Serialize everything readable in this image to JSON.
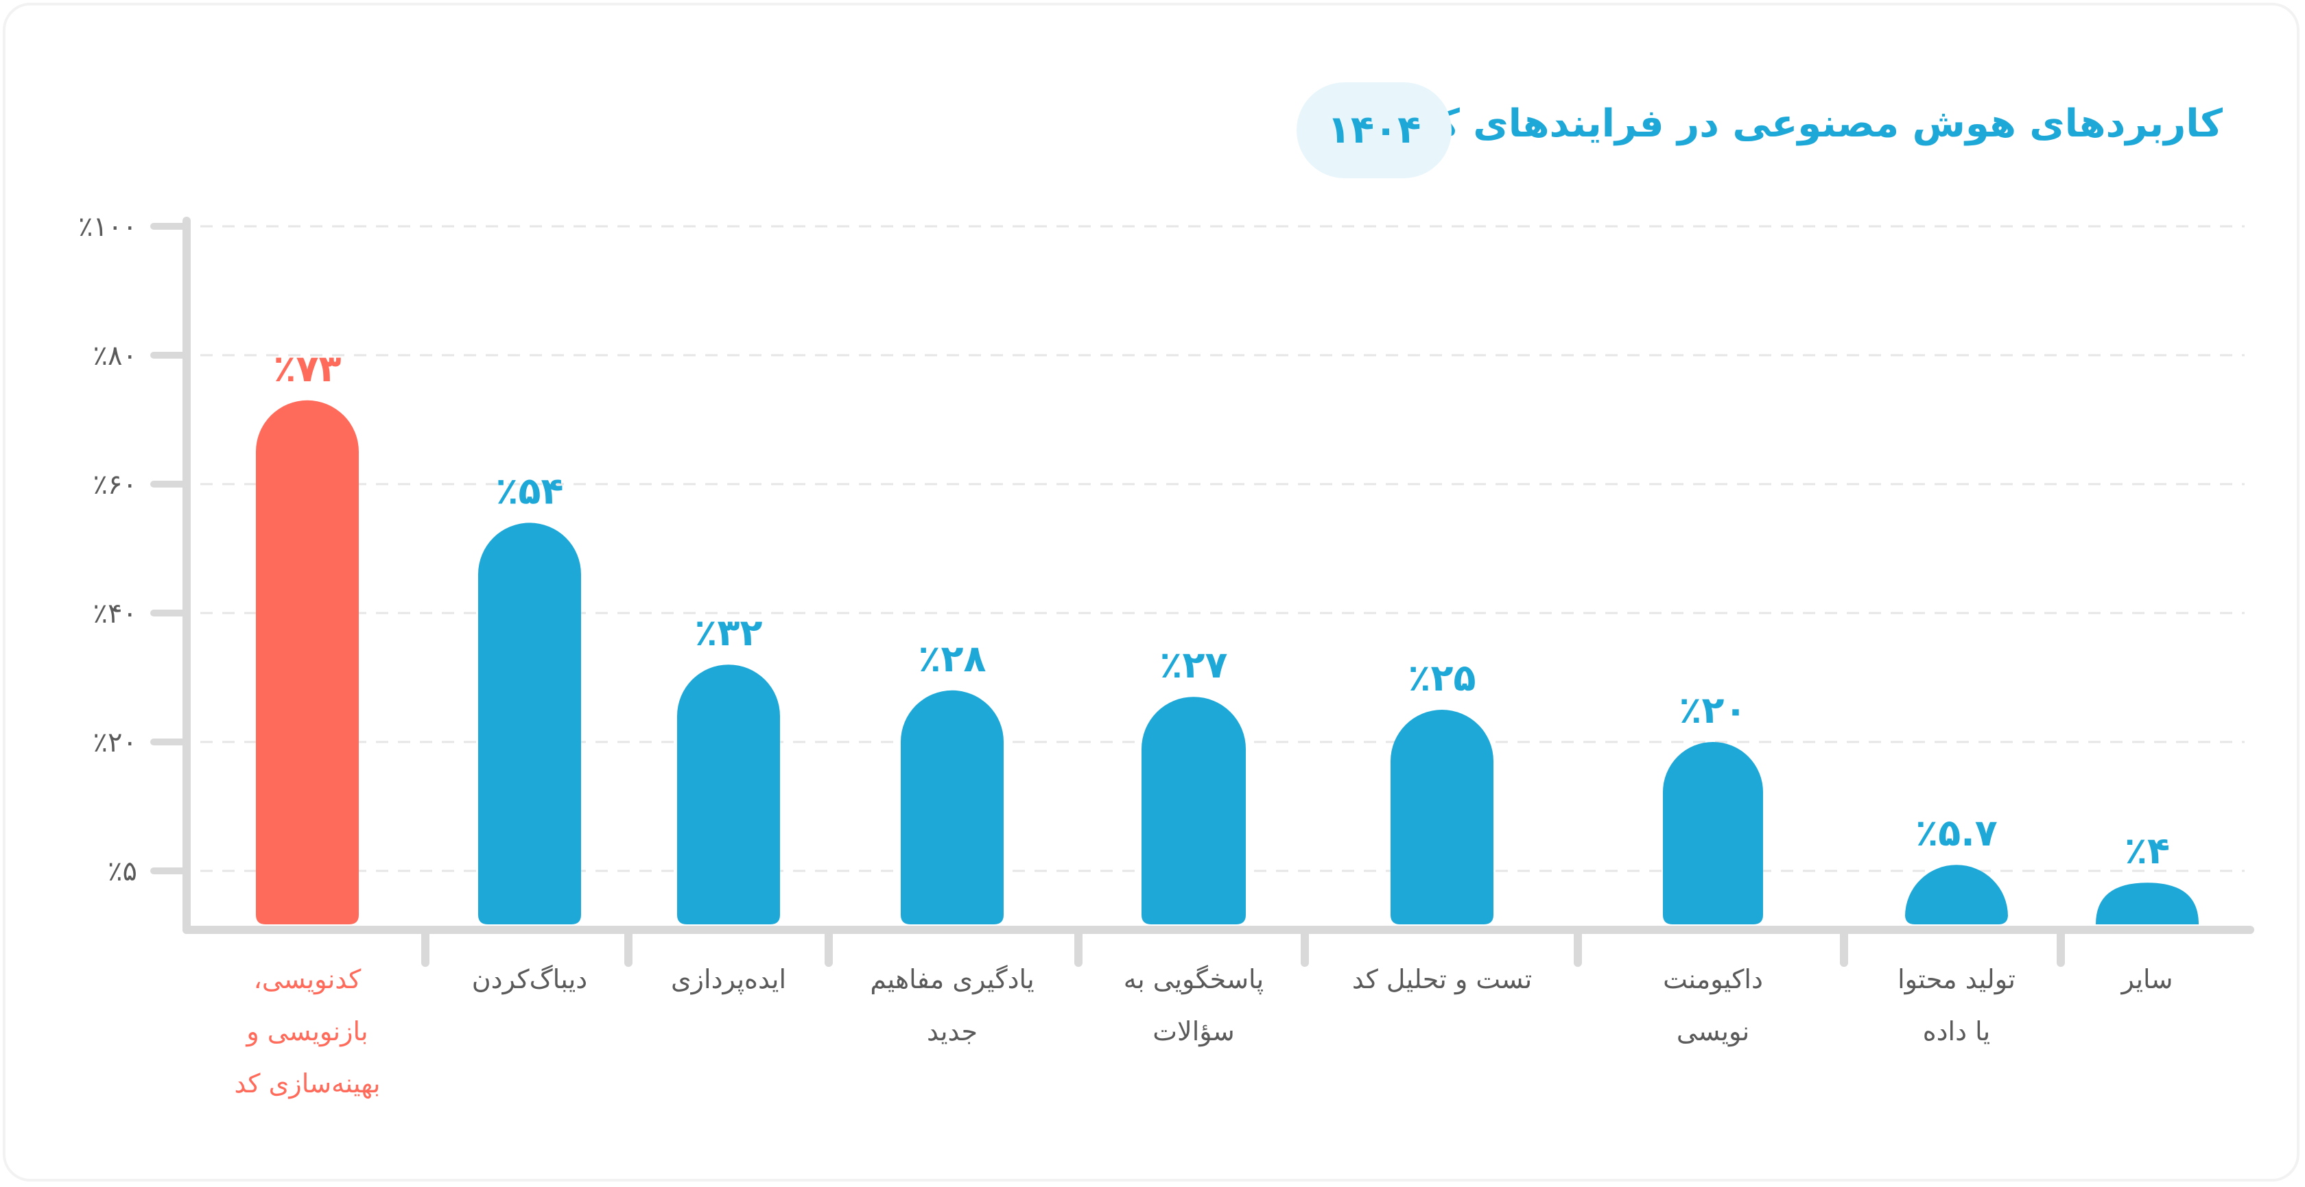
{
  "title": "کاربردهای هوش مصنوعی در فرایندهای کاری",
  "year": "۱۴۰۴",
  "colors": {
    "primary": "#1da8d8",
    "highlight": "#ff6b5b",
    "axis": "#d9d9d9",
    "grid": "#e6e6e6",
    "label": "#5a5a5a"
  },
  "chart_data": {
    "type": "bar",
    "grid": true,
    "ylim": [
      0,
      100
    ],
    "yticks": [
      {
        "value": 100,
        "label": "٪۱۰۰"
      },
      {
        "value": 80,
        "label": "٪۸۰"
      },
      {
        "value": 60,
        "label": "٪۶۰"
      },
      {
        "value": 40,
        "label": "٪۴۰"
      },
      {
        "value": 20,
        "label": "٪۲۰"
      },
      {
        "value": 5,
        "label": "٪۵"
      }
    ],
    "categories": [
      "کدنویسی، بازنویسی و بهینه‌سازی کد",
      "دیباگ‌کردن",
      "ایده‌پردازی",
      "یادگیری مفاهیم جدید",
      "پاسخگویی به سؤالات",
      "تست و تحلیل کد",
      "داکیومنت نویسی",
      "تولید محتوا یا داده",
      "سایر"
    ],
    "label_lines": [
      [
        "کدنویسی،",
        "بازنویسی و",
        "بهینه‌سازی کد"
      ],
      [
        "دیباگ‌کردن"
      ],
      [
        "ایده‌پردازی"
      ],
      [
        "یادگیری مفاهیم",
        "جدید"
      ],
      [
        "پاسخگویی به",
        "سؤالات"
      ],
      [
        "تست و تحلیل کد"
      ],
      [
        "داکیومنت",
        "نویسی"
      ],
      [
        "تولید محتوا",
        "یا داده"
      ],
      [
        "سایر"
      ]
    ],
    "values": [
      73,
      54,
      32,
      28,
      27,
      25,
      20,
      5.7,
      4
    ],
    "value_labels": [
      "٪۷۳",
      "٪۵۴",
      "٪۳۲",
      "٪۲۸",
      "٪۲۷",
      "٪۲۵",
      "٪۲۰",
      "٪۵.۷",
      "٪۴"
    ],
    "highlight_index": 0
  }
}
